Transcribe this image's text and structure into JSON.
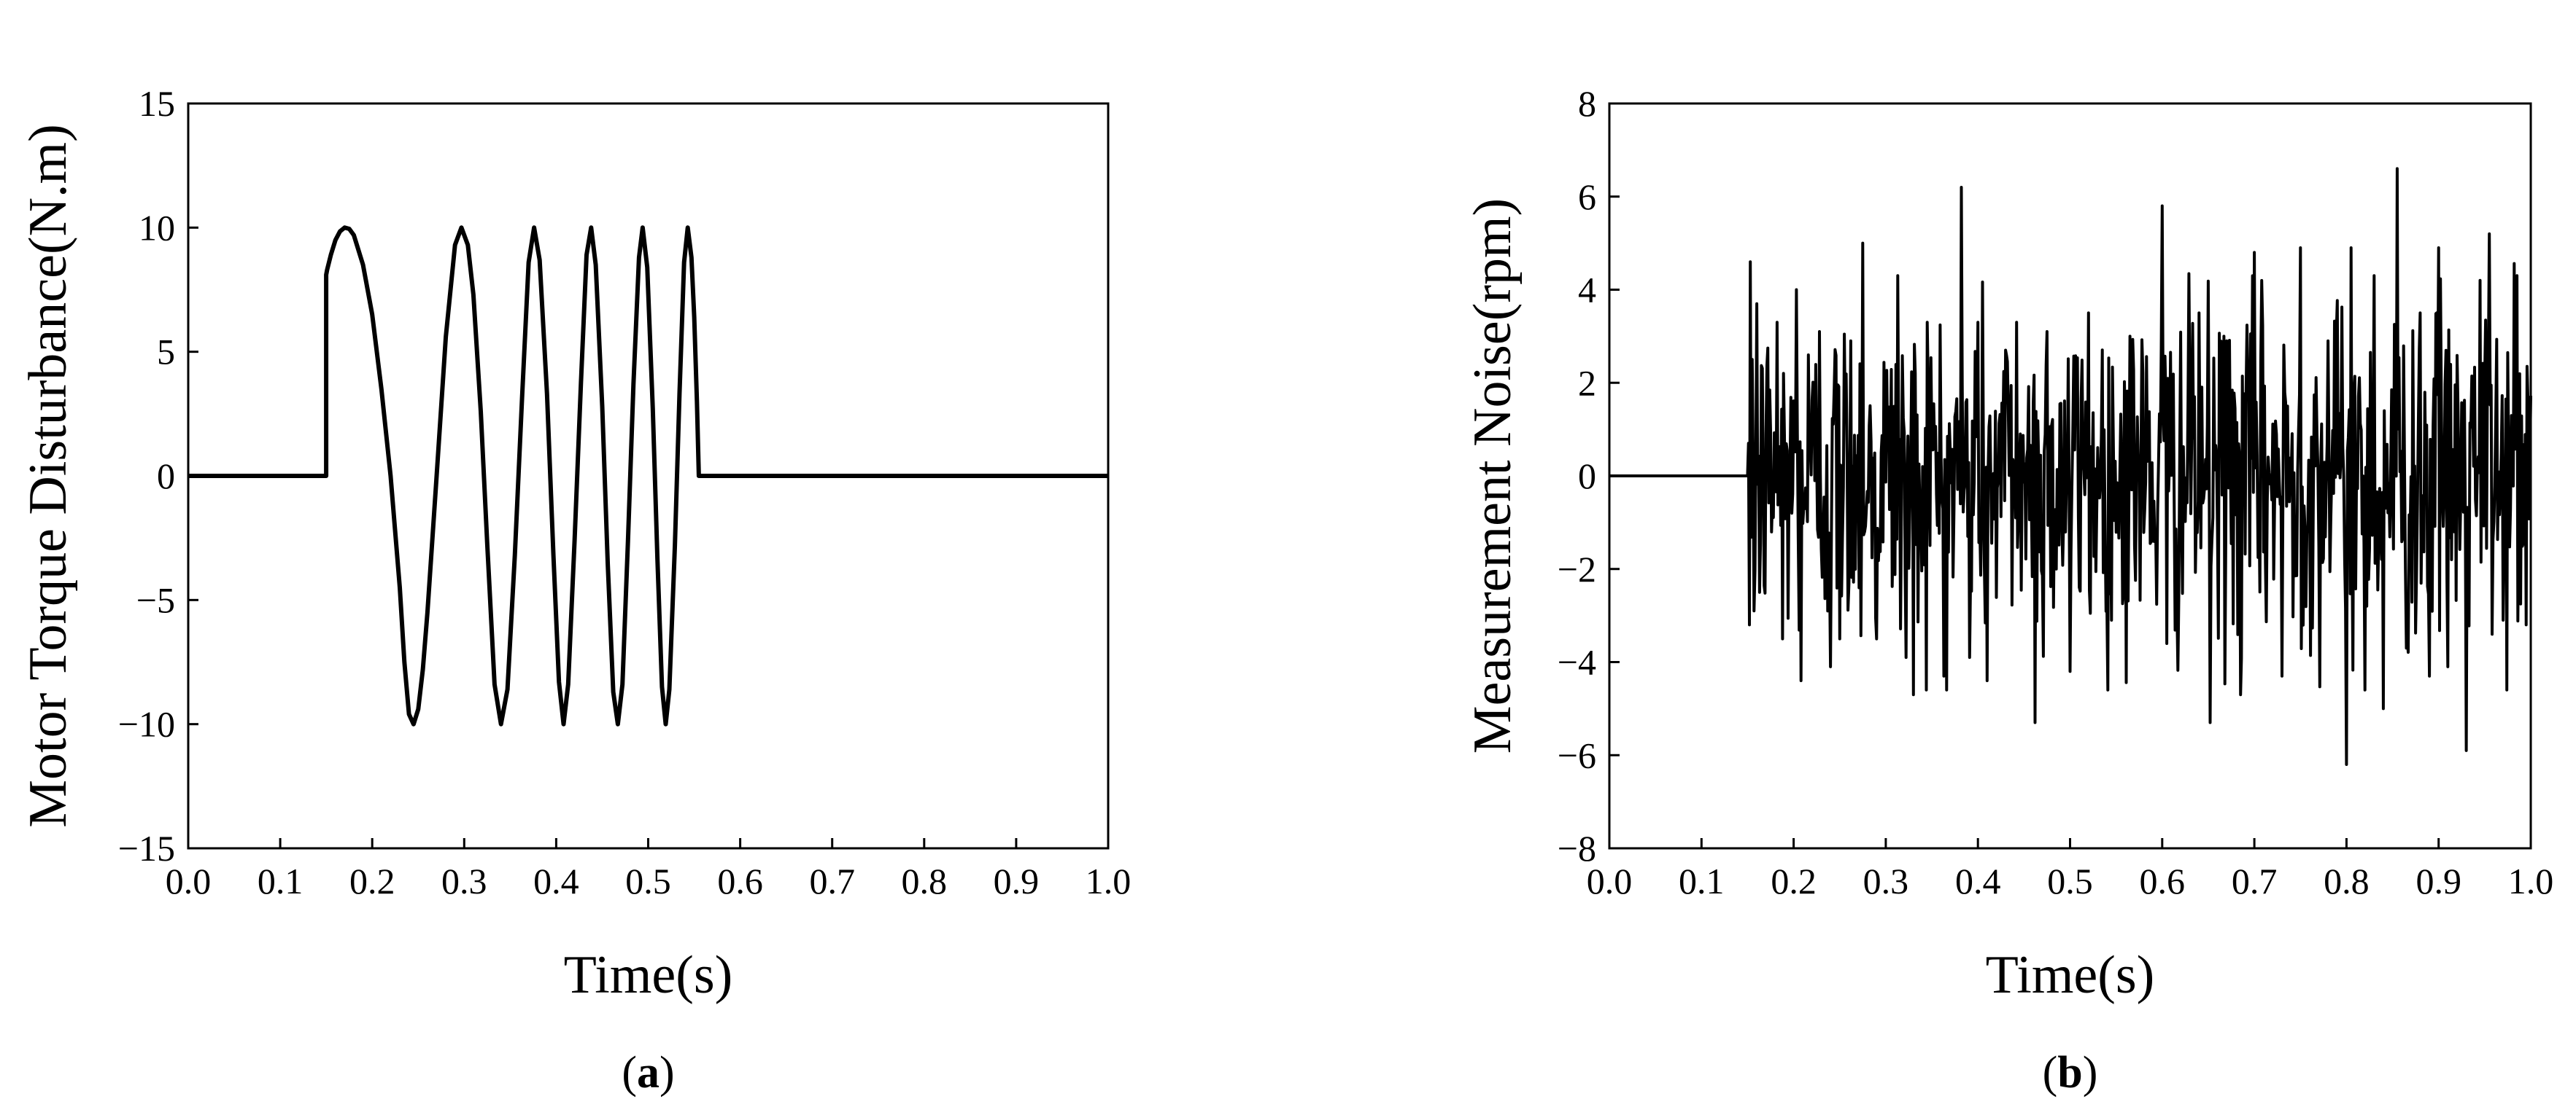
{
  "chart_data": [
    {
      "id": "a",
      "type": "line",
      "panel_label": "a",
      "xlabel": "Time(s)",
      "ylabel": "Motor Torque Disturbance(N.m)",
      "xlim": [
        0.0,
        1.0
      ],
      "ylim": [
        -15,
        15
      ],
      "xticks": [
        "0.0",
        "0.1",
        "0.2",
        "0.3",
        "0.4",
        "0.5",
        "0.6",
        "0.7",
        "0.8",
        "0.9",
        "1.0"
      ],
      "yticks": [
        "−15",
        "−10",
        "−5",
        "0",
        "5",
        "10",
        "15"
      ],
      "grid": false,
      "color": "#000000",
      "points": [
        [
          0,
          0
        ],
        [
          0.15,
          0
        ],
        [
          0.15,
          8.1
        ],
        [
          0.151,
          8.3
        ],
        [
          0.155,
          8.9
        ],
        [
          0.16,
          9.5
        ],
        [
          0.165,
          9.85
        ],
        [
          0.17,
          10
        ],
        [
          0.175,
          9.95
        ],
        [
          0.18,
          9.7
        ],
        [
          0.19,
          8.5
        ],
        [
          0.2,
          6.5
        ],
        [
          0.21,
          3.5
        ],
        [
          0.22,
          0
        ],
        [
          0.23,
          -4.5
        ],
        [
          0.235,
          -7.5
        ],
        [
          0.24,
          -9.6
        ],
        [
          0.245,
          -10
        ],
        [
          0.25,
          -9.4
        ],
        [
          0.255,
          -7.8
        ],
        [
          0.26,
          -5.5
        ],
        [
          0.27,
          0
        ],
        [
          0.28,
          5.6
        ],
        [
          0.29,
          9.3
        ],
        [
          0.297,
          10
        ],
        [
          0.304,
          9.3
        ],
        [
          0.31,
          7.3
        ],
        [
          0.318,
          2.6
        ],
        [
          0.325,
          -2.7
        ],
        [
          0.333,
          -8.4
        ],
        [
          0.34,
          -10
        ],
        [
          0.347,
          -8.6
        ],
        [
          0.355,
          -3.2
        ],
        [
          0.363,
          3.2
        ],
        [
          0.37,
          8.6
        ],
        [
          0.376,
          10
        ],
        [
          0.382,
          8.7
        ],
        [
          0.39,
          3.3
        ],
        [
          0.397,
          -3.2
        ],
        [
          0.403,
          -8.3
        ],
        [
          0.408,
          -10
        ],
        [
          0.413,
          -8.4
        ],
        [
          0.42,
          -2.6
        ],
        [
          0.427,
          3.8
        ],
        [
          0.433,
          8.9
        ],
        [
          0.438,
          10
        ],
        [
          0.443,
          8.5
        ],
        [
          0.45,
          2.8
        ],
        [
          0.456,
          -3.5
        ],
        [
          0.462,
          -8.7
        ],
        [
          0.467,
          -10
        ],
        [
          0.472,
          -8.4
        ],
        [
          0.478,
          -2.6
        ],
        [
          0.484,
          3.7
        ],
        [
          0.49,
          8.8
        ],
        [
          0.494,
          10
        ],
        [
          0.499,
          8.4
        ],
        [
          0.505,
          2.7
        ],
        [
          0.51,
          -3.3
        ],
        [
          0.515,
          -8.5
        ],
        [
          0.519,
          -10
        ],
        [
          0.523,
          -8.6
        ],
        [
          0.529,
          -2.8
        ],
        [
          0.534,
          3.3
        ],
        [
          0.539,
          8.6
        ],
        [
          0.543,
          10
        ],
        [
          0.547,
          8.8
        ],
        [
          0.55,
          6.4
        ],
        [
          0.553,
          3.0
        ],
        [
          0.555,
          0
        ],
        [
          1.0,
          0
        ]
      ]
    },
    {
      "id": "b",
      "type": "line",
      "panel_label": "b",
      "xlabel": "Time(s)",
      "ylabel": "Measurement Noise(rpm)",
      "xlim": [
        0.0,
        1.0
      ],
      "ylim": [
        -8,
        8
      ],
      "xticks": [
        "0.0",
        "0.1",
        "0.2",
        "0.3",
        "0.4",
        "0.5",
        "0.6",
        "0.7",
        "0.8",
        "0.9",
        "1.0"
      ],
      "yticks": [
        "−8",
        "−6",
        "−4",
        "−2",
        "0",
        "2",
        "4",
        "6",
        "8"
      ],
      "grid": false,
      "color": "#000000",
      "flat_until": 0.15,
      "noise_range": [
        0.15,
        1.0
      ],
      "noise_step": 0.001,
      "noise_std": 1.8,
      "noise_seed": 12345,
      "noise_peaks": [
        [
          0.151,
          0.7
        ],
        [
          0.152,
          -3.2
        ],
        [
          0.155,
          2.5
        ],
        [
          0.157,
          -2.9
        ],
        [
          0.16,
          3.7
        ],
        [
          0.163,
          -2.5
        ],
        [
          0.182,
          3.3
        ],
        [
          0.188,
          -3.5
        ],
        [
          0.203,
          4.0
        ],
        [
          0.208,
          -4.4
        ],
        [
          0.228,
          3.1
        ],
        [
          0.24,
          -4.1
        ],
        [
          0.25,
          -3.5
        ],
        [
          0.262,
          2.9
        ],
        [
          0.275,
          5.0
        ],
        [
          0.29,
          -3.5
        ],
        [
          0.313,
          4.3
        ],
        [
          0.322,
          -3.9
        ],
        [
          0.33,
          -4.7
        ],
        [
          0.345,
          3.3
        ],
        [
          0.363,
          -4.3
        ],
        [
          0.382,
          6.2
        ],
        [
          0.391,
          -3.9
        ],
        [
          0.4,
          3.3
        ],
        [
          0.41,
          -4.4
        ],
        [
          0.43,
          2.7
        ],
        [
          0.442,
          3.3
        ],
        [
          0.462,
          -5.3
        ],
        [
          0.475,
          3.1
        ],
        [
          0.5,
          -4.2
        ],
        [
          0.52,
          3.5
        ],
        [
          0.545,
          -3.1
        ],
        [
          0.565,
          3.0
        ],
        [
          0.6,
          5.8
        ],
        [
          0.605,
          -3.6
        ],
        [
          0.64,
          3.5
        ],
        [
          0.652,
          -5.3
        ],
        [
          0.67,
          2.9
        ],
        [
          0.685,
          -4.7
        ],
        [
          0.7,
          4.8
        ],
        [
          0.73,
          -4.3
        ],
        [
          0.75,
          4.9
        ],
        [
          0.78,
          2.9
        ],
        [
          0.8,
          -6.2
        ],
        [
          0.805,
          4.9
        ],
        [
          0.82,
          -4.6
        ],
        [
          0.83,
          4.3
        ],
        [
          0.84,
          -5.0
        ],
        [
          0.855,
          6.6
        ],
        [
          0.865,
          -3.7
        ],
        [
          0.88,
          3.5
        ],
        [
          0.89,
          -4.3
        ],
        [
          0.9,
          4.9
        ],
        [
          0.91,
          -4.1
        ],
        [
          0.93,
          -5.9
        ],
        [
          0.945,
          4.2
        ],
        [
          0.955,
          5.2
        ],
        [
          0.97,
          -3.1
        ],
        [
          0.985,
          4.3
        ],
        [
          0.995,
          -3.2
        ]
      ]
    }
  ]
}
